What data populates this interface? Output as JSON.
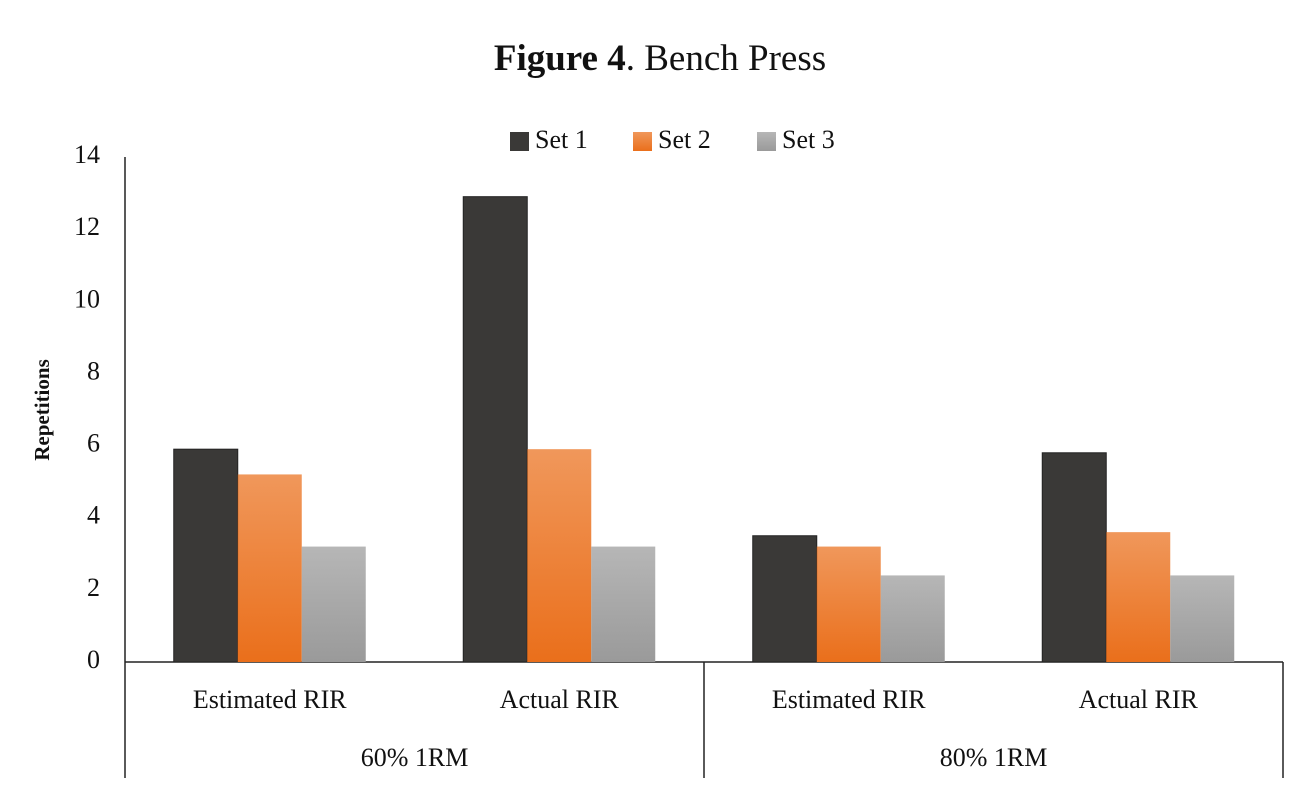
{
  "chart_data": {
    "type": "bar",
    "figure_label": "Figure 4",
    "title": ". Bench Press",
    "y_label": "Repetitions",
    "categories": [
      "Estimated RIR",
      "Actual RIR",
      "Estimated RIR",
      "Actual RIR"
    ],
    "groups": [
      "60% 1RM",
      "80% 1RM"
    ],
    "series": [
      {
        "name": "Set 1",
        "color": "#3a3937",
        "values": [
          5.9,
          12.9,
          3.5,
          5.8
        ]
      },
      {
        "name": "Set 2",
        "color": "#ea6f1b",
        "values": [
          5.2,
          5.9,
          3.2,
          3.6
        ]
      },
      {
        "name": "Set 3",
        "color": "#9a9a9a",
        "values": [
          3.2,
          3.2,
          2.4,
          2.4
        ]
      }
    ],
    "ylim": [
      0,
      14
    ],
    "yticks": [
      0,
      2,
      4,
      6,
      8,
      10,
      12,
      14
    ],
    "grid": false,
    "legend": "top"
  }
}
